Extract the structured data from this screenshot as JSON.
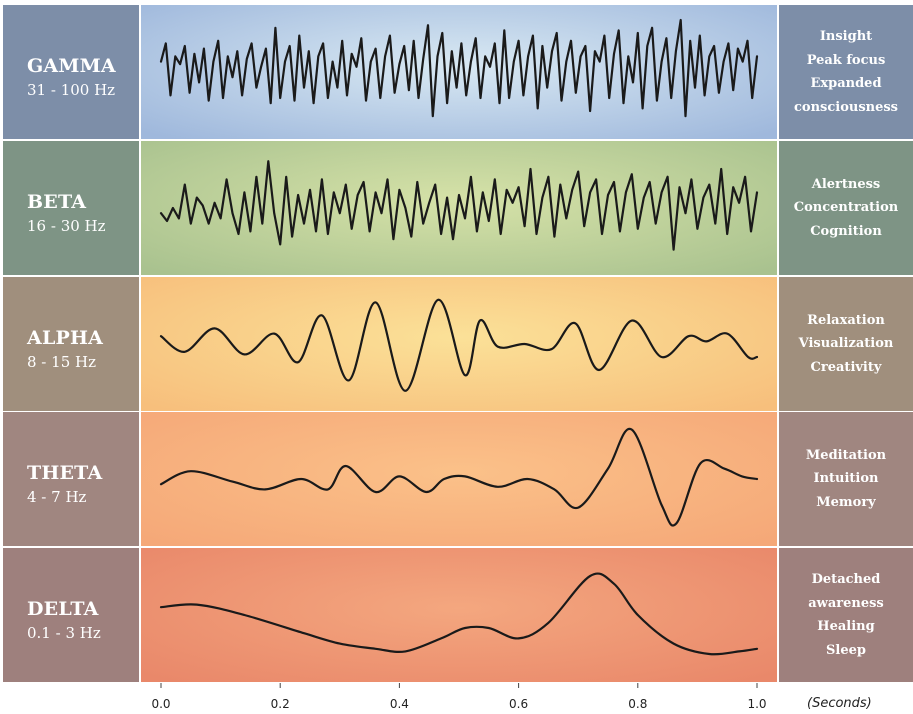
{
  "chart_data": {
    "type": "line",
    "x_unit": "(Seconds)",
    "xlim": [
      0.0,
      1.0
    ],
    "x_ticks": [
      "0.0",
      "0.2",
      "0.4",
      "0.6",
      "0.8",
      "1.0"
    ],
    "grid": false,
    "series": [
      {
        "name": "GAMMA",
        "hz": "31 - 100 Hz",
        "effects": [
          "Insight",
          "Peak focus",
          "Expanded",
          "consciousness"
        ],
        "colors": [
          "#9fb8dc",
          "#d9e9f3"
        ],
        "side_color": "#7d8ea8",
        "ylim": [
          -1,
          1
        ],
        "x": [
          0.0,
          0.008,
          0.016,
          0.024,
          0.032,
          0.04,
          0.048,
          0.056,
          0.064,
          0.072,
          0.08,
          0.088,
          0.096,
          0.104,
          0.112,
          0.12,
          0.128,
          0.136,
          0.144,
          0.152,
          0.16,
          0.168,
          0.176,
          0.184,
          0.192,
          0.2,
          0.208,
          0.216,
          0.224,
          0.232,
          0.24,
          0.248,
          0.256,
          0.264,
          0.272,
          0.28,
          0.288,
          0.296,
          0.304,
          0.312,
          0.32,
          0.328,
          0.336,
          0.344,
          0.352,
          0.36,
          0.368,
          0.376,
          0.384,
          0.392,
          0.4,
          0.408,
          0.416,
          0.424,
          0.432,
          0.44,
          0.448,
          0.456,
          0.464,
          0.472,
          0.48,
          0.488,
          0.496,
          0.504,
          0.512,
          0.52,
          0.528,
          0.536,
          0.544,
          0.552,
          0.56,
          0.568,
          0.576,
          0.584,
          0.592,
          0.6,
          0.608,
          0.616,
          0.624,
          0.632,
          0.64,
          0.648,
          0.656,
          0.664,
          0.672,
          0.68,
          0.688,
          0.696,
          0.704,
          0.712,
          0.72,
          0.728,
          0.736,
          0.744,
          0.752,
          0.76,
          0.768,
          0.776,
          0.784,
          0.792,
          0.8,
          0.808,
          0.816,
          0.824,
          0.832,
          0.84,
          0.848,
          0.856,
          0.864,
          0.872,
          0.88,
          0.888,
          0.896,
          0.904,
          0.912,
          0.92,
          0.928,
          0.936,
          0.944,
          0.952,
          0.96,
          0.968,
          0.976,
          0.984,
          0.992,
          1.0
        ],
        "y": [
          0.2,
          0.55,
          -0.45,
          0.3,
          0.15,
          0.5,
          -0.4,
          0.35,
          -0.2,
          0.45,
          -0.55,
          0.2,
          0.6,
          -0.5,
          0.3,
          -0.1,
          0.4,
          -0.45,
          0.25,
          0.55,
          -0.3,
          0.1,
          0.45,
          -0.6,
          0.85,
          -0.5,
          0.2,
          0.5,
          -0.55,
          0.7,
          -0.3,
          0.4,
          -0.6,
          0.3,
          0.55,
          -0.5,
          0.2,
          -0.3,
          0.6,
          -0.45,
          0.35,
          0.1,
          0.65,
          -0.55,
          0.2,
          0.45,
          -0.5,
          0.3,
          0.7,
          -0.4,
          0.15,
          0.5,
          -0.35,
          0.6,
          -0.5,
          0.25,
          0.9,
          -0.85,
          0.3,
          0.75,
          -0.6,
          0.4,
          -0.3,
          0.55,
          -0.45,
          0.2,
          0.65,
          -0.5,
          0.3,
          0.1,
          0.55,
          -0.6,
          0.8,
          -0.5,
          0.2,
          0.6,
          -0.45,
          0.3,
          0.7,
          -0.7,
          0.5,
          -0.3,
          0.4,
          0.75,
          -0.55,
          0.2,
          0.6,
          -0.4,
          0.3,
          0.5,
          -0.75,
          0.4,
          0.2,
          0.7,
          -0.5,
          0.35,
          0.8,
          -0.6,
          0.3,
          -0.2,
          0.75,
          -0.7,
          0.5,
          0.85,
          -0.55,
          0.2,
          0.65,
          -0.5,
          0.4,
          1.0,
          -0.85,
          0.6,
          -0.3,
          0.7,
          -0.45,
          0.3,
          0.5,
          -0.4,
          0.2,
          0.55,
          -0.35,
          0.45,
          0.2,
          0.6,
          -0.5,
          0.3
        ]
      },
      {
        "name": "BETA",
        "hz": "16 - 30 Hz",
        "effects": [
          "Alertness",
          "Concentration",
          "Cognition"
        ],
        "colors": [
          "#a9c28f",
          "#d6e2a8"
        ],
        "side_color": "#7e9485",
        "ylim": [
          -1,
          1
        ],
        "x": [
          0.0,
          0.01,
          0.02,
          0.03,
          0.04,
          0.05,
          0.06,
          0.07,
          0.08,
          0.09,
          0.1,
          0.11,
          0.12,
          0.13,
          0.14,
          0.15,
          0.16,
          0.17,
          0.18,
          0.19,
          0.2,
          0.21,
          0.22,
          0.23,
          0.24,
          0.25,
          0.26,
          0.27,
          0.28,
          0.29,
          0.3,
          0.31,
          0.32,
          0.33,
          0.34,
          0.35,
          0.36,
          0.37,
          0.38,
          0.39,
          0.4,
          0.41,
          0.42,
          0.43,
          0.44,
          0.45,
          0.46,
          0.47,
          0.48,
          0.49,
          0.5,
          0.51,
          0.52,
          0.53,
          0.54,
          0.55,
          0.56,
          0.57,
          0.58,
          0.59,
          0.6,
          0.61,
          0.62,
          0.63,
          0.64,
          0.65,
          0.66,
          0.67,
          0.68,
          0.69,
          0.7,
          0.71,
          0.72,
          0.73,
          0.74,
          0.75,
          0.76,
          0.77,
          0.78,
          0.79,
          0.8,
          0.81,
          0.82,
          0.83,
          0.84,
          0.85,
          0.86,
          0.87,
          0.88,
          0.89,
          0.9,
          0.91,
          0.92,
          0.93,
          0.94,
          0.95,
          0.96,
          0.97,
          0.98,
          0.99,
          1.0
        ],
        "y": [
          -0.1,
          -0.25,
          0.0,
          -0.2,
          0.45,
          -0.3,
          0.2,
          0.05,
          -0.3,
          0.1,
          -0.2,
          0.55,
          -0.1,
          -0.5,
          0.3,
          -0.45,
          0.6,
          -0.3,
          0.9,
          -0.1,
          -0.7,
          0.6,
          -0.55,
          0.25,
          -0.3,
          0.35,
          -0.45,
          0.55,
          -0.5,
          0.3,
          -0.1,
          0.45,
          -0.4,
          0.25,
          0.5,
          -0.45,
          0.3,
          -0.1,
          0.55,
          -0.6,
          0.35,
          0.0,
          -0.55,
          0.5,
          -0.3,
          0.1,
          0.45,
          -0.5,
          0.2,
          -0.6,
          0.25,
          -0.2,
          0.6,
          -0.45,
          0.3,
          -0.25,
          0.55,
          -0.5,
          0.35,
          0.1,
          0.4,
          -0.35,
          0.75,
          -0.5,
          0.2,
          0.6,
          -0.55,
          0.45,
          -0.2,
          0.35,
          0.7,
          -0.35,
          0.3,
          0.55,
          -0.5,
          0.25,
          0.5,
          -0.45,
          0.3,
          0.65,
          -0.4,
          0.2,
          0.5,
          -0.3,
          0.3,
          0.6,
          -0.8,
          0.4,
          -0.1,
          0.55,
          -0.4,
          0.2,
          0.45,
          -0.3,
          0.75,
          -0.5,
          0.4,
          0.1,
          0.6,
          -0.45,
          0.3
        ]
      },
      {
        "name": "ALPHA",
        "hz": "8 - 15 Hz",
        "effects": [
          "Relaxation",
          "Visualization",
          "Creativity"
        ],
        "colors": [
          "#f7bf7c",
          "#fbe198"
        ],
        "side_color": "#a08f7d",
        "ylim": [
          -1,
          1
        ],
        "x": [
          0.0,
          0.04,
          0.09,
          0.14,
          0.19,
          0.23,
          0.27,
          0.315,
          0.36,
          0.41,
          0.465,
          0.51,
          0.535,
          0.565,
          0.61,
          0.655,
          0.695,
          0.735,
          0.79,
          0.84,
          0.885,
          0.915,
          0.95,
          0.985,
          1.0
        ],
        "y": [
          0.15,
          -0.15,
          0.3,
          -0.2,
          0.2,
          -0.35,
          0.55,
          -0.7,
          0.8,
          -0.9,
          0.85,
          -0.6,
          0.45,
          -0.05,
          0.0,
          -0.1,
          0.4,
          -0.5,
          0.45,
          -0.25,
          0.15,
          0.05,
          0.2,
          -0.25,
          -0.25
        ]
      },
      {
        "name": "THETA",
        "hz": "4 - 7 Hz",
        "effects": [
          "Meditation",
          "Intuition",
          "Memory"
        ],
        "colors": [
          "#f5a878",
          "#fbc189"
        ],
        "side_color": "#a08680",
        "ylim": [
          -1,
          1
        ],
        "x": [
          0.0,
          0.05,
          0.12,
          0.175,
          0.235,
          0.28,
          0.31,
          0.36,
          0.4,
          0.445,
          0.475,
          0.51,
          0.565,
          0.615,
          0.66,
          0.7,
          0.75,
          0.79,
          0.84,
          0.865,
          0.905,
          0.945,
          0.975,
          1.0
        ],
        "y": [
          -0.1,
          0.15,
          -0.05,
          -0.2,
          0.0,
          -0.2,
          0.25,
          -0.25,
          0.05,
          -0.25,
          0.0,
          0.05,
          -0.15,
          0.0,
          -0.2,
          -0.55,
          0.2,
          0.95,
          -0.5,
          -0.85,
          0.3,
          0.2,
          0.05,
          0.0
        ]
      },
      {
        "name": "DELTA",
        "hz": "0.1 - 3 Hz",
        "effects": [
          "Detached",
          "awareness",
          "Healing",
          "Sleep"
        ],
        "colors": [
          "#e9886a",
          "#f4a77f"
        ],
        "side_color": "#9e807d",
        "ylim": [
          -1,
          1
        ],
        "x": [
          0.0,
          0.06,
          0.14,
          0.24,
          0.3,
          0.36,
          0.41,
          0.47,
          0.51,
          0.55,
          0.6,
          0.65,
          0.72,
          0.76,
          0.8,
          0.86,
          0.92,
          0.97,
          1.0
        ],
        "y": [
          0.15,
          0.2,
          0.0,
          -0.35,
          -0.55,
          -0.65,
          -0.7,
          -0.45,
          -0.25,
          -0.25,
          -0.45,
          -0.15,
          0.75,
          0.6,
          0.0,
          -0.55,
          -0.75,
          -0.7,
          -0.65
        ]
      }
    ]
  }
}
